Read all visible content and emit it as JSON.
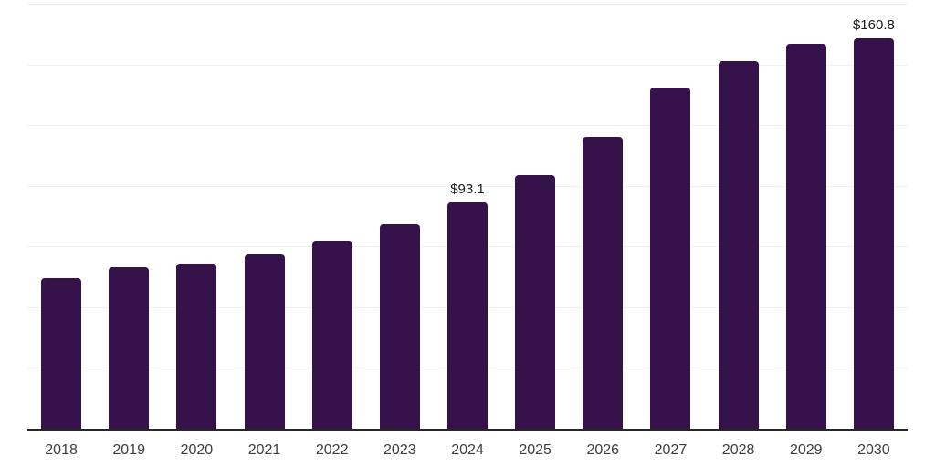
{
  "chart_data": {
    "type": "bar",
    "title": "",
    "xlabel": "",
    "ylabel": "",
    "categories": [
      "2018",
      "2019",
      "2020",
      "2021",
      "2022",
      "2023",
      "2024",
      "2025",
      "2026",
      "2027",
      "2028",
      "2029",
      "2030"
    ],
    "values": [
      61.9,
      66.6,
      68.1,
      71.9,
      77.2,
      84.0,
      93.1,
      104.4,
      120.3,
      140.6,
      151.2,
      158.5,
      160.8
    ],
    "value_unit_prefix": "$",
    "annotations": [
      {
        "category": "2024",
        "text": "$93.1"
      },
      {
        "category": "2030",
        "text": "$160.8"
      }
    ],
    "ylim": [
      0,
      175
    ],
    "gridline_step": 25,
    "grid": "horizontal-only",
    "y_tick_labels_visible": false,
    "legend": "none",
    "colors": {
      "bar": "#351249",
      "gridline": "#f0f0f0",
      "axis_line": "#262626",
      "tick_label": "#3d3d3d",
      "data_label": "#1a1a1a",
      "background": "#ffffff"
    }
  }
}
